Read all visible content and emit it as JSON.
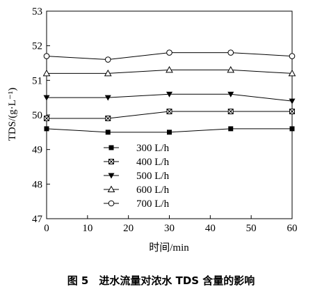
{
  "chart_data": {
    "type": "line",
    "title": "",
    "xlabel": "时间/min",
    "ylabel": "TDS/(g·L⁻¹)",
    "xlim": [
      0,
      60
    ],
    "ylim": [
      47,
      53
    ],
    "xticks": [
      0,
      10,
      20,
      30,
      40,
      50,
      60
    ],
    "yticks": [
      47,
      48,
      49,
      50,
      51,
      52,
      53
    ],
    "grid": false,
    "legend_position": "lower-left",
    "x": [
      0,
      15,
      30,
      45,
      60
    ],
    "series": [
      {
        "name": "300 L/h",
        "marker": "filled-square",
        "values": [
          49.6,
          49.5,
          49.5,
          49.6,
          49.6
        ]
      },
      {
        "name": "400 L/h",
        "marker": "crossed-square",
        "values": [
          49.9,
          49.9,
          50.1,
          50.1,
          50.1
        ]
      },
      {
        "name": "500 L/h",
        "marker": "filled-triangle-down",
        "values": [
          50.5,
          50.5,
          50.6,
          50.6,
          50.4
        ]
      },
      {
        "name": "600 L/h",
        "marker": "open-triangle-up",
        "values": [
          51.2,
          51.2,
          51.3,
          51.3,
          51.2
        ]
      },
      {
        "name": "700 L/h",
        "marker": "open-circle",
        "values": [
          51.7,
          51.6,
          51.8,
          51.8,
          51.7
        ]
      }
    ]
  },
  "caption": "图 5　进水流量对浓水 TDS 含量的影响"
}
